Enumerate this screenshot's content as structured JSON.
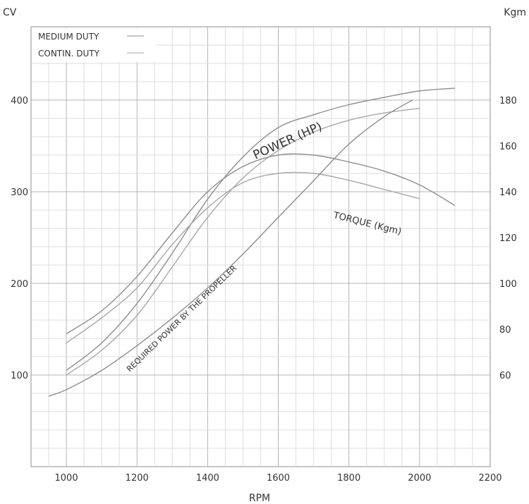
{
  "chart_data": {
    "type": "line",
    "title": "",
    "xlabel": "RPM",
    "ylabel_left": "CV",
    "ylabel_right": "Kgm",
    "xlim": [
      900,
      2200
    ],
    "xticks": [
      1000,
      1200,
      1400,
      1600,
      1800,
      2000,
      2200
    ],
    "ylim_left": [
      0,
      480
    ],
    "yticks_left": [
      100,
      200,
      300,
      400
    ],
    "ylim_right": [
      20,
      212
    ],
    "yticks_right": [
      60,
      80,
      100,
      120,
      140,
      160,
      180
    ],
    "grid": true,
    "legend_position": "top-left",
    "legend": [
      {
        "label": "MEDIUM DUTY"
      },
      {
        "label": "CONTIN. DUTY"
      }
    ],
    "curve_labels": {
      "power": "POWER (HP)",
      "torque": "TORQUE (Kgm)",
      "propeller": "REQUIRED POWER BY THE PROPELLER"
    },
    "series": [
      {
        "name": "POWER (HP) MEDIUM DUTY",
        "axis": "left",
        "duty": "medium",
        "x": [
          1000,
          1100,
          1200,
          1300,
          1400,
          1500,
          1600,
          1700,
          1800,
          1900,
          2000,
          2100
        ],
        "y": [
          105,
          135,
          178,
          233,
          292,
          338,
          370,
          384,
          395,
          403,
          410,
          413
        ]
      },
      {
        "name": "POWER (HP) CONTIN. DUTY",
        "axis": "left",
        "duty": "continuous",
        "x": [
          1000,
          1100,
          1200,
          1300,
          1400,
          1500,
          1600,
          1700,
          1800,
          1900,
          2000
        ],
        "y": [
          100,
          127,
          165,
          218,
          272,
          315,
          345,
          365,
          378,
          386,
          391
        ]
      },
      {
        "name": "TORQUE (Kgm) MEDIUM DUTY",
        "axis": "right",
        "duty": "medium",
        "x": [
          1000,
          1100,
          1200,
          1300,
          1400,
          1500,
          1600,
          1700,
          1800,
          1900,
          2000,
          2100
        ],
        "y": [
          78,
          88,
          103,
          122,
          140,
          151,
          156,
          156,
          153,
          149,
          143,
          134
        ]
      },
      {
        "name": "TORQUE (Kgm) CONTIN. DUTY",
        "axis": "right",
        "duty": "continuous",
        "x": [
          1000,
          1100,
          1200,
          1300,
          1400,
          1500,
          1600,
          1700,
          1800,
          1900,
          2000
        ],
        "y": [
          74,
          85,
          98,
          117,
          133,
          144,
          148,
          148,
          145,
          141,
          137
        ]
      },
      {
        "name": "REQUIRED POWER BY THE PROPELLER",
        "axis": "left",
        "duty": "",
        "x": [
          950,
          1000,
          1100,
          1200,
          1300,
          1400,
          1500,
          1600,
          1700,
          1800,
          1900,
          1980
        ],
        "y": [
          77,
          84,
          105,
          132,
          162,
          195,
          232,
          272,
          312,
          352,
          382,
          400
        ]
      }
    ]
  }
}
